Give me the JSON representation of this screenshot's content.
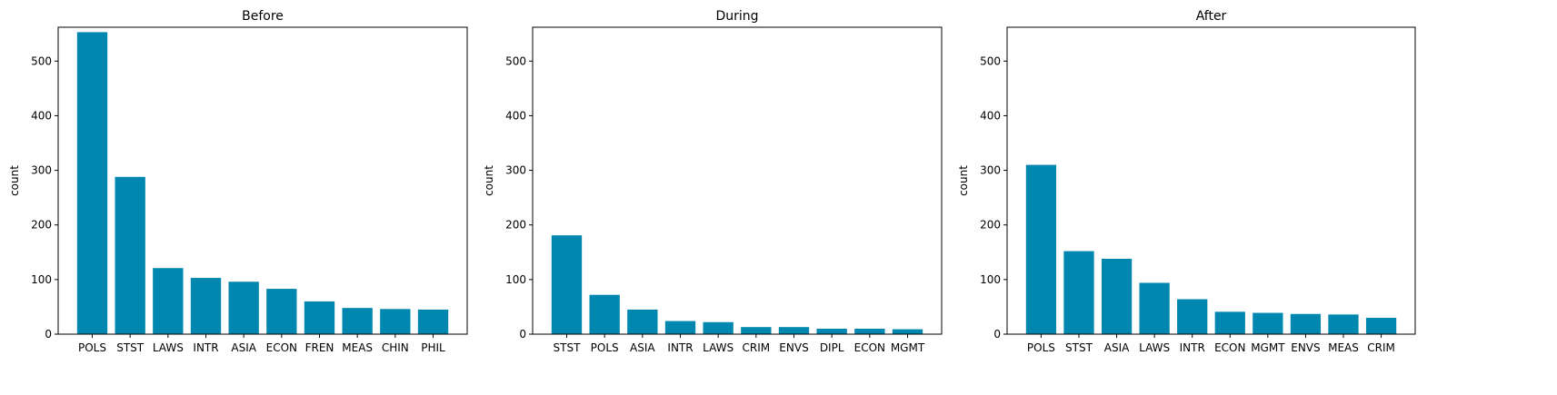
{
  "colors": {
    "bar": "#0087af",
    "axis": "#000000",
    "background": "#ffffff"
  },
  "chart_data": [
    {
      "type": "bar",
      "title": "Before",
      "xlabel": "",
      "ylabel": "count",
      "ylim": [
        0,
        562
      ],
      "yticks": [
        0,
        100,
        200,
        300,
        400,
        500
      ],
      "grid": false,
      "categories": [
        "POLS",
        "STST",
        "LAWS",
        "INTR",
        "ASIA",
        "ECON",
        "FREN",
        "MEAS",
        "CHIN",
        "PHIL"
      ],
      "values": [
        553,
        288,
        121,
        103,
        96,
        83,
        60,
        48,
        46,
        45
      ]
    },
    {
      "type": "bar",
      "title": "During",
      "xlabel": "",
      "ylabel": "count",
      "ylim": [
        0,
        562
      ],
      "yticks": [
        0,
        100,
        200,
        300,
        400,
        500
      ],
      "grid": false,
      "categories": [
        "STST",
        "POLS",
        "ASIA",
        "INTR",
        "LAWS",
        "CRIM",
        "ENVS",
        "DIPL",
        "ECON",
        "MGMT"
      ],
      "values": [
        181,
        72,
        45,
        24,
        22,
        13,
        13,
        10,
        10,
        9
      ]
    },
    {
      "type": "bar",
      "title": "After",
      "xlabel": "",
      "ylabel": "count",
      "ylim": [
        0,
        562
      ],
      "yticks": [
        0,
        100,
        200,
        300,
        400,
        500
      ],
      "grid": false,
      "categories": [
        "POLS",
        "STST",
        "ASIA",
        "LAWS",
        "INTR",
        "ECON",
        "MGMT",
        "ENVS",
        "MEAS",
        "CRIM"
      ],
      "values": [
        310,
        152,
        138,
        94,
        64,
        41,
        39,
        37,
        36,
        30
      ]
    }
  ]
}
